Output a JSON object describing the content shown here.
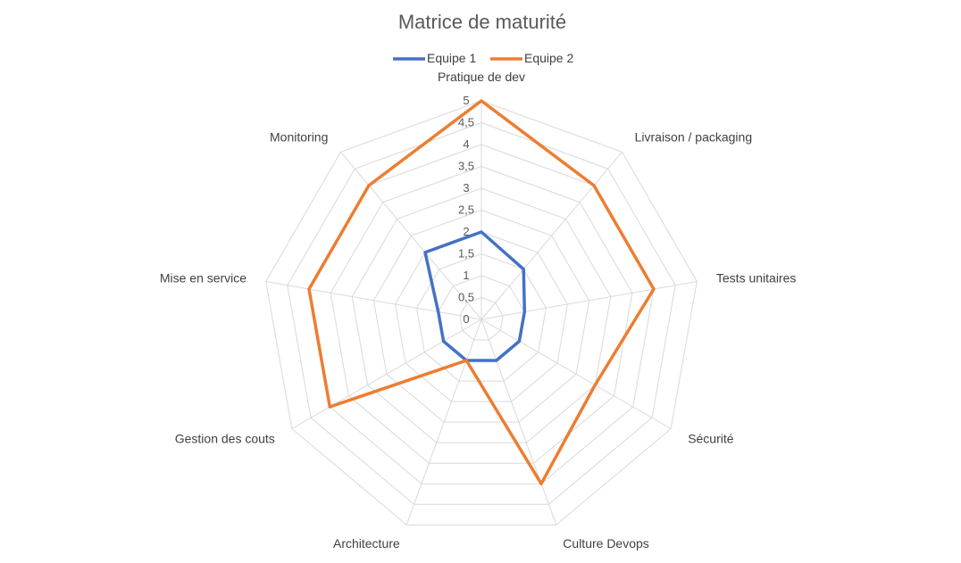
{
  "chart_data": {
    "type": "radar",
    "title": "Matrice de maturité",
    "categories": [
      "Pratique de dev",
      "Livraison / packaging",
      "Tests unitaires",
      "Sécurité",
      "Culture Devops",
      "Architecture",
      "Gestion des couts",
      "Mise en service",
      "Monitoring"
    ],
    "series": [
      {
        "name": "Equipe 1",
        "color": "#4472c4",
        "values": [
          2,
          1.5,
          1,
          1,
          1,
          1,
          1,
          1,
          2
        ]
      },
      {
        "name": "Equipe 2",
        "color": "#ed7d31",
        "values": [
          5,
          4,
          4,
          3,
          4,
          1,
          4,
          4,
          4
        ]
      }
    ],
    "ticks": [
      "0",
      "0,5",
      "1",
      "1,5",
      "2",
      "2,5",
      "3",
      "3,5",
      "4",
      "4,5",
      "5"
    ],
    "rmin": 0,
    "rmax": 5,
    "grid": true,
    "legend_position": "top"
  }
}
